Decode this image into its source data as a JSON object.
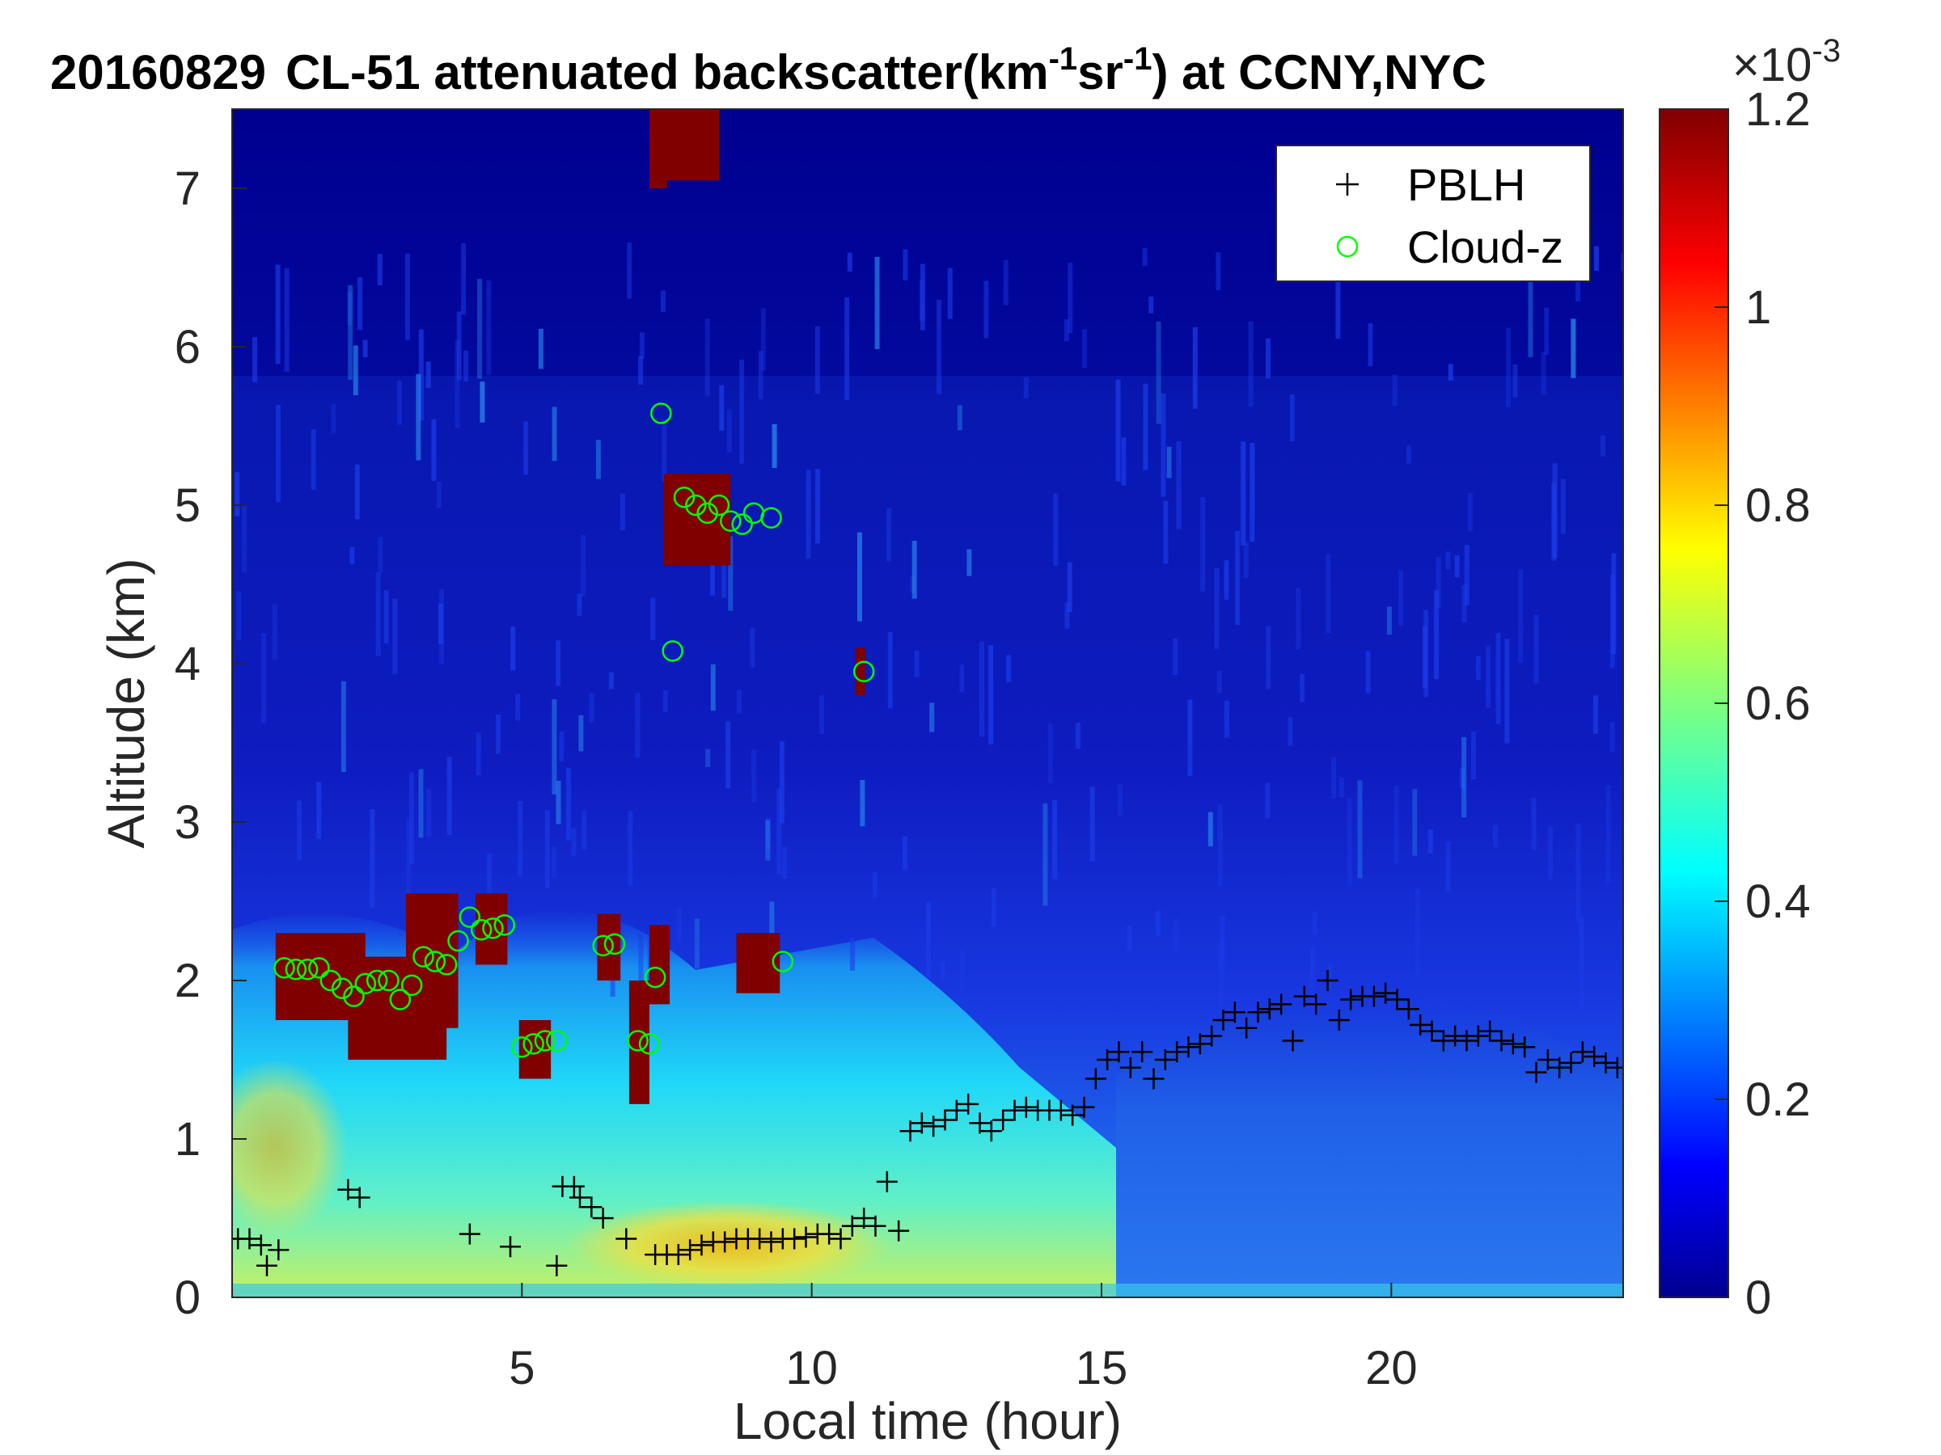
{
  "chart_data": {
    "type": "heatmap",
    "title_parts": {
      "date": "20160829",
      "instrument": "CL-51 attenuated backscatter(km",
      "sup1": "-1",
      "mid": "sr",
      "sup2": "-1",
      "tail": ") at CCNY,NYC"
    },
    "xlabel": "Local time (hour)",
    "ylabel": "Altitude (km)",
    "xlim": [
      0,
      24
    ],
    "ylim": [
      0,
      7.5
    ],
    "x_ticks": [
      5,
      10,
      15,
      20
    ],
    "x_tick_labels": [
      "5",
      "10",
      "15",
      "20"
    ],
    "y_ticks": [
      0,
      1,
      2,
      3,
      4,
      5,
      6,
      7
    ],
    "y_tick_labels": [
      "0",
      "1",
      "2",
      "3",
      "4",
      "5",
      "6",
      "7"
    ],
    "colorbar": {
      "colormap": "jet",
      "range": [
        0,
        0.0012
      ],
      "ticks": [
        0,
        0.2,
        0.4,
        0.6,
        0.8,
        1,
        1.2
      ],
      "tick_labels": [
        "0",
        "0.2",
        "0.4",
        "0.6",
        "0.8",
        "1",
        "1.2"
      ],
      "exponent_base": "×10",
      "exponent": "-3"
    },
    "legend": {
      "placement": "top-right",
      "entries": [
        {
          "name": "PBLH",
          "marker": "+",
          "color": "#000000"
        },
        {
          "name": "Cloud-z",
          "marker": "o",
          "color": "#00ff00"
        }
      ]
    },
    "series": [
      {
        "name": "PBLH",
        "x": [
          0.1,
          0.3,
          0.5,
          0.6,
          0.8,
          2.0,
          2.2,
          4.1,
          4.8,
          5.6,
          5.7,
          5.9,
          6.0,
          6.2,
          6.4,
          6.8,
          7.3,
          7.5,
          7.7,
          7.9,
          8.1,
          8.3,
          8.5,
          8.7,
          8.9,
          9.1,
          9.3,
          9.5,
          9.7,
          9.9,
          10.1,
          10.3,
          10.5,
          10.7,
          10.9,
          11.1,
          11.3,
          11.5,
          11.7,
          11.9,
          12.1,
          12.3,
          12.5,
          12.7,
          12.9,
          13.1,
          13.3,
          13.5,
          13.7,
          13.9,
          14.1,
          14.3,
          14.5,
          14.7,
          14.9,
          15.1,
          15.3,
          15.5,
          15.7,
          15.9,
          16.1,
          16.3,
          16.5,
          16.7,
          16.9,
          17.1,
          17.3,
          17.5,
          17.7,
          17.9,
          18.1,
          18.3,
          18.5,
          18.7,
          18.9,
          19.1,
          19.3,
          19.5,
          19.7,
          19.9,
          20.1,
          20.3,
          20.5,
          20.7,
          20.9,
          21.1,
          21.3,
          21.5,
          21.7,
          21.9,
          22.1,
          22.3,
          22.5,
          22.7,
          22.9,
          23.1,
          23.3,
          23.5,
          23.7,
          23.9
        ],
        "y": [
          0.37,
          0.37,
          0.33,
          0.2,
          0.3,
          0.68,
          0.63,
          0.4,
          0.32,
          0.2,
          0.7,
          0.7,
          0.63,
          0.57,
          0.5,
          0.37,
          0.27,
          0.27,
          0.27,
          0.3,
          0.33,
          0.35,
          0.35,
          0.37,
          0.37,
          0.37,
          0.35,
          0.37,
          0.37,
          0.38,
          0.4,
          0.4,
          0.37,
          0.45,
          0.5,
          0.45,
          0.73,
          0.42,
          1.05,
          1.1,
          1.08,
          1.12,
          1.18,
          1.22,
          1.1,
          1.05,
          1.12,
          1.18,
          1.2,
          1.18,
          1.18,
          1.18,
          1.15,
          1.2,
          1.38,
          1.5,
          1.55,
          1.45,
          1.55,
          1.38,
          1.5,
          1.55,
          1.58,
          1.6,
          1.65,
          1.75,
          1.8,
          1.7,
          1.8,
          1.82,
          1.85,
          1.62,
          1.9,
          1.85,
          2.0,
          1.75,
          1.88,
          1.9,
          1.9,
          1.92,
          1.88,
          1.82,
          1.72,
          1.68,
          1.62,
          1.65,
          1.62,
          1.65,
          1.68,
          1.62,
          1.6,
          1.58,
          1.42,
          1.5,
          1.45,
          1.48,
          1.55,
          1.52,
          1.48,
          1.45
        ]
      },
      {
        "name": "Cloud-z",
        "x": [
          0.9,
          1.1,
          1.3,
          1.5,
          1.7,
          1.9,
          2.1,
          2.3,
          2.5,
          2.7,
          2.9,
          3.1,
          3.3,
          3.5,
          3.7,
          3.9,
          4.1,
          4.3,
          4.5,
          4.7,
          5.0,
          5.2,
          5.4,
          5.6,
          6.4,
          6.6,
          7.0,
          7.2,
          7.3,
          7.4,
          7.6,
          7.8,
          8.0,
          8.2,
          8.4,
          8.6,
          8.8,
          9.0,
          9.3,
          9.5,
          10.9
        ],
        "y": [
          2.08,
          2.07,
          2.07,
          2.08,
          2.0,
          1.95,
          1.9,
          1.98,
          2.0,
          2.0,
          1.88,
          1.97,
          2.15,
          2.12,
          2.1,
          2.25,
          2.4,
          2.32,
          2.33,
          2.35,
          1.58,
          1.6,
          1.62,
          1.62,
          2.22,
          2.23,
          1.62,
          1.6,
          2.02,
          5.58,
          4.08,
          5.05,
          5.0,
          4.95,
          5.0,
          4.9,
          4.88,
          4.95,
          4.92,
          2.12,
          3.95
        ]
      }
    ],
    "cloud_blocks": [
      {
        "x0": 0.75,
        "x1": 2.3,
        "ytop": 2.3,
        "ybot": 1.75
      },
      {
        "x0": 2.0,
        "x1": 3.7,
        "ytop": 2.15,
        "ybot": 1.5
      },
      {
        "x0": 3.0,
        "x1": 3.9,
        "ytop": 2.55,
        "ybot": 1.7
      },
      {
        "x0": 4.2,
        "x1": 4.75,
        "ytop": 2.55,
        "ybot": 2.1
      },
      {
        "x0": 4.95,
        "x1": 5.5,
        "ytop": 1.75,
        "ybot": 1.38
      },
      {
        "x0": 6.3,
        "x1": 6.7,
        "ytop": 2.42,
        "ybot": 2.0
      },
      {
        "x0": 6.85,
        "x1": 7.2,
        "ytop": 2.0,
        "ybot": 1.22
      },
      {
        "x0": 7.2,
        "x1": 7.55,
        "ytop": 2.35,
        "ybot": 1.85
      },
      {
        "x0": 7.45,
        "x1": 8.6,
        "ytop": 5.2,
        "ybot": 4.62
      },
      {
        "x0": 8.7,
        "x1": 9.45,
        "ytop": 2.3,
        "ybot": 1.92
      },
      {
        "x0": 10.75,
        "x1": 10.92,
        "ytop": 4.1,
        "ybot": 3.8
      },
      {
        "x0": 7.2,
        "x1": 7.5,
        "ytop": 7.5,
        "ybot": 7.0
      },
      {
        "x0": 7.4,
        "x1": 8.4,
        "ytop": 7.5,
        "ybot": 7.05
      }
    ]
  }
}
